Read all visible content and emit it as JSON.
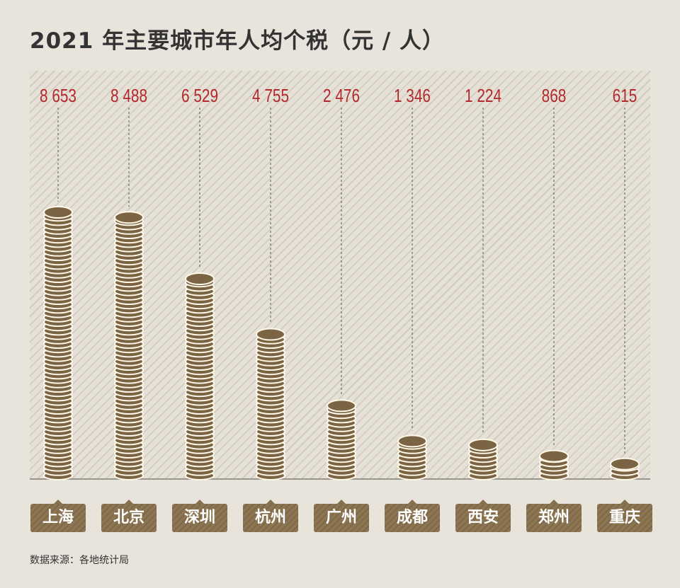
{
  "chart_data": {
    "type": "bar",
    "title": "2021 年主要城市年人均个税（元 / 人）",
    "categories": [
      "上海",
      "北京",
      "深圳",
      "杭州",
      "广州",
      "成都",
      "西安",
      "郑州",
      "重庆"
    ],
    "values": [
      8653,
      8488,
      6529,
      4755,
      2476,
      1346,
      1224,
      868,
      615
    ],
    "data_labels": [
      "8 653",
      "8 488",
      "6 529",
      "4 755",
      "2 476",
      "1 346",
      "1 224",
      "868",
      "615"
    ],
    "xlabel": "",
    "ylabel": "",
    "grid": false,
    "colors": {
      "coin": "#7a6444",
      "coin_edge": "#fff8e8",
      "value_label": "#b3282d",
      "tag": "#857050"
    }
  },
  "source": "数据来源：各地统计局"
}
